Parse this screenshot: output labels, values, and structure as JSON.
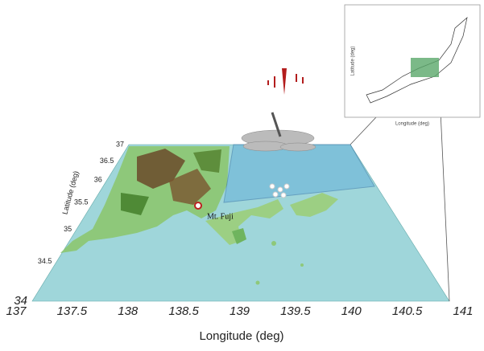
{
  "map": {
    "x_axis": {
      "label": "Longitude (deg)",
      "ticks": [
        137,
        137.5,
        138,
        138.5,
        139,
        139.5,
        140,
        140.5,
        141
      ]
    },
    "y_axis": {
      "label": "Latitude (deg)",
      "ticks": [
        34,
        34.5,
        35,
        35.5,
        36,
        36.5,
        37
      ]
    },
    "annotation": "Mt. Fuji",
    "inset": {
      "x_label": "Longitude (deg)",
      "y_label": "Latitude (deg)"
    }
  }
}
